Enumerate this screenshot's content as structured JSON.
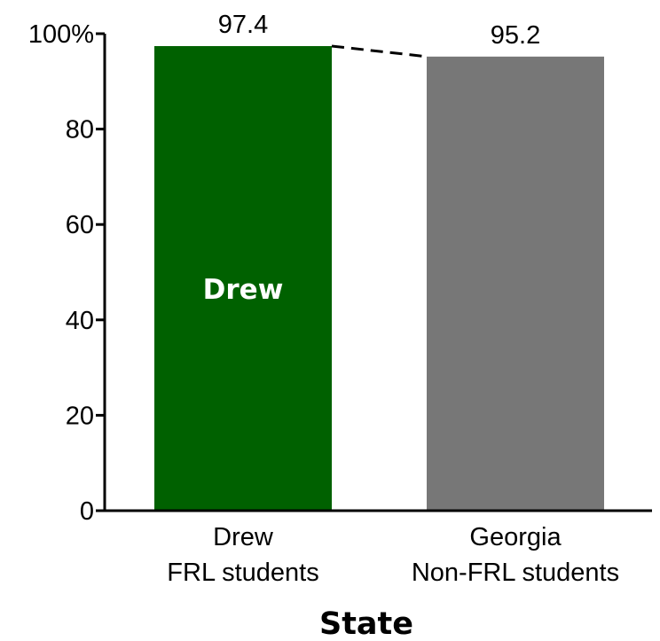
{
  "chart_data": {
    "type": "bar",
    "title": "",
    "xlabel": "State",
    "ylabel": "",
    "ylim": [
      0,
      100
    ],
    "yticks": [
      {
        "value": 0,
        "label": "0"
      },
      {
        "value": 20,
        "label": "20"
      },
      {
        "value": 40,
        "label": "40"
      },
      {
        "value": 60,
        "label": "60"
      },
      {
        "value": 80,
        "label": "80"
      },
      {
        "value": 100,
        "label": "100%"
      }
    ],
    "bars": [
      {
        "line1": "Drew",
        "line2": "FRL students",
        "value": 97.4,
        "value_label": "97.4",
        "color": "#006100",
        "inside_label": "Drew"
      },
      {
        "line1": "Georgia",
        "line2": "Non-FRL students",
        "value": 95.2,
        "value_label": "95.2",
        "color": "#777777",
        "inside_label": ""
      }
    ],
    "connector": "dashed",
    "grid": false
  }
}
